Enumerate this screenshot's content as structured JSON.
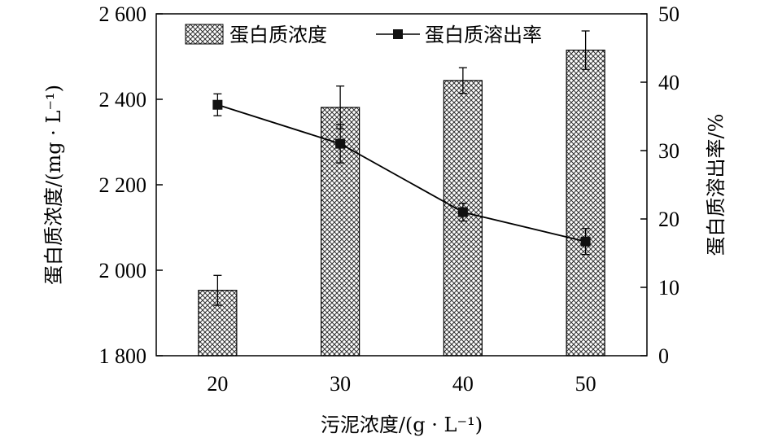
{
  "chart_data": {
    "type": "bar",
    "categories": [
      "20",
      "30",
      "40",
      "50"
    ],
    "xlabel": "污泥浓度/(g · L⁻¹)",
    "ylabel_left": "蛋白质浓度/(mg · L⁻¹)",
    "ylabel_right": "蛋白质溶出率/%",
    "ylim_left": [
      1800,
      2600
    ],
    "ylim_right": [
      0,
      50
    ],
    "yticks_left": [
      1800,
      2000,
      2200,
      2400,
      2600
    ],
    "ytick_labels_left": [
      "1 800",
      "2 000",
      "2 200",
      "2 400",
      "2 600"
    ],
    "yticks_right": [
      0,
      10,
      20,
      30,
      40,
      50
    ],
    "ytick_labels_right": [
      "0",
      "10",
      "20",
      "30",
      "40",
      "50"
    ],
    "grid": false,
    "legend_position": "top",
    "series": [
      {
        "name": "蛋白质浓度",
        "kind": "bar",
        "axis": "left",
        "pattern": "crosshatch",
        "values": [
          1953,
          2381,
          2444,
          2515
        ],
        "error": [
          35,
          50,
          30,
          45
        ]
      },
      {
        "name": "蛋白质溶出率",
        "kind": "line",
        "axis": "right",
        "marker": "square",
        "values": [
          36.7,
          31.0,
          21.0,
          16.7
        ],
        "error": [
          1.6,
          2.8,
          1.3,
          1.9
        ]
      }
    ]
  }
}
